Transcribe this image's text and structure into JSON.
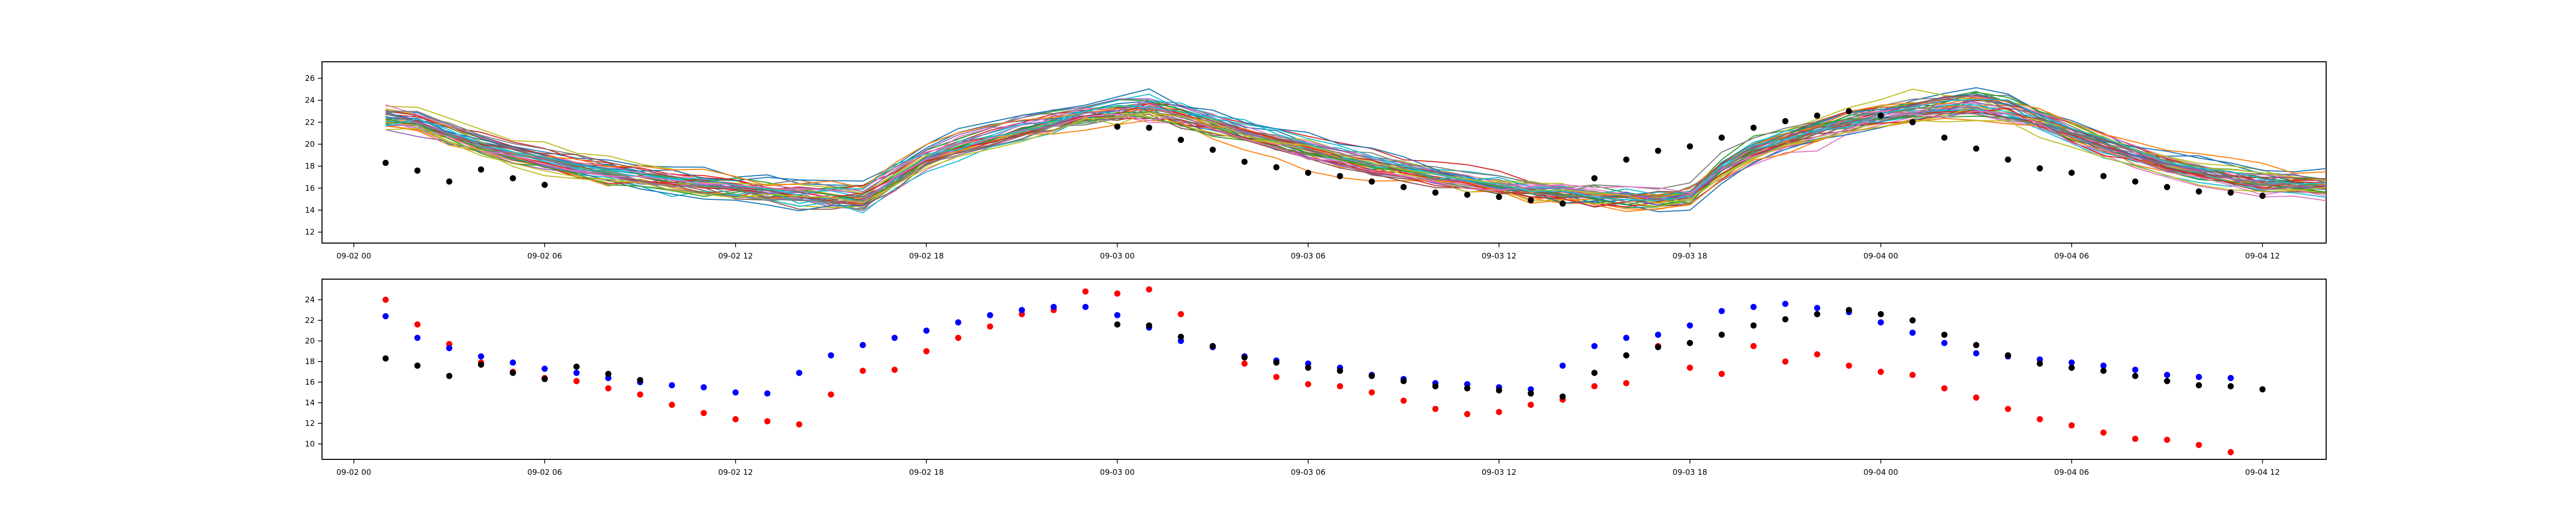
{
  "chart_data": [
    {
      "type": "line",
      "title": "",
      "xlabel": "",
      "ylabel": "",
      "xlim": [
        "2023-09-01 23:00",
        "2023-09-04 14:00"
      ],
      "ylim": [
        11,
        27.5
      ],
      "yticks": [
        12,
        14,
        16,
        18,
        20,
        22,
        24,
        26
      ],
      "xticks": [
        {
          "t": "2023-09-02 00:00",
          "label": "09-02 00"
        },
        {
          "t": "2023-09-02 06:00",
          "label": "09-02 06"
        },
        {
          "t": "2023-09-02 12:00",
          "label": "09-02 12"
        },
        {
          "t": "2023-09-02 18:00",
          "label": "09-02 18"
        },
        {
          "t": "2023-09-03 00:00",
          "label": "09-03 00"
        },
        {
          "t": "2023-09-03 06:00",
          "label": "09-03 06"
        },
        {
          "t": "2023-09-03 12:00",
          "label": "09-03 12"
        },
        {
          "t": "2023-09-03 18:00",
          "label": "09-03 18"
        },
        {
          "t": "2023-09-04 00:00",
          "label": "09-04 00"
        },
        {
          "t": "2023-09-04 06:00",
          "label": "09-04 06"
        },
        {
          "t": "2023-09-04 12:00",
          "label": "09-04 12"
        }
      ],
      "grid": false,
      "legend": "none",
      "ensemble": {
        "description_count": 40,
        "start": "2023-09-02 01:00",
        "step_hours": 1,
        "mean": [
          22.3,
          22.0,
          21.0,
          20.0,
          19.2,
          18.5,
          17.9,
          17.4,
          17.0,
          16.6,
          16.3,
          16.0,
          15.7,
          15.4,
          15.2,
          15.0,
          17.0,
          18.8,
          19.8,
          20.6,
          21.3,
          22.0,
          22.6,
          23.1,
          23.4,
          22.8,
          22.0,
          21.2,
          20.4,
          19.6,
          18.9,
          18.2,
          17.7,
          17.2,
          16.8,
          16.4,
          16.0,
          15.7,
          15.4,
          15.2,
          15.0,
          15.4,
          17.8,
          19.4,
          20.4,
          21.2,
          22.0,
          22.6,
          23.1,
          23.5,
          23.7,
          23.2,
          22.2,
          21.0,
          19.9,
          18.9,
          18.1,
          17.5,
          17.0,
          16.6,
          16.3,
          16.1,
          16.0,
          15.9,
          15.8,
          15.7
        ],
        "colors": [
          "#1f77b4",
          "#ff7f0e",
          "#2ca02c",
          "#d62728",
          "#9467bd",
          "#8c564b",
          "#e377c2",
          "#7f7f7f",
          "#bcbd22",
          "#17becf"
        ]
      },
      "series": [
        {
          "name": "",
          "color": "#000000",
          "marker": "o",
          "points": [
            [
              "2023-09-02 01:00",
              18.3
            ],
            [
              "2023-09-02 02:00",
              17.6
            ],
            [
              "2023-09-02 03:00",
              16.6
            ],
            [
              "2023-09-02 04:00",
              17.7
            ],
            [
              "2023-09-02 05:00",
              16.9
            ],
            [
              "2023-09-02 06:00",
              16.3
            ],
            [
              "2023-09-03 00:00",
              21.6
            ],
            [
              "2023-09-03 01:00",
              21.5
            ],
            [
              "2023-09-03 02:00",
              20.4
            ],
            [
              "2023-09-03 03:00",
              19.5
            ],
            [
              "2023-09-03 04:00",
              18.4
            ],
            [
              "2023-09-03 05:00",
              17.9
            ],
            [
              "2023-09-03 06:00",
              17.4
            ],
            [
              "2023-09-03 07:00",
              17.1
            ],
            [
              "2023-09-03 08:00",
              16.6
            ],
            [
              "2023-09-03 09:00",
              16.1
            ],
            [
              "2023-09-03 10:00",
              15.6
            ],
            [
              "2023-09-03 11:00",
              15.4
            ],
            [
              "2023-09-03 12:00",
              15.2
            ],
            [
              "2023-09-03 13:00",
              14.9
            ],
            [
              "2023-09-03 14:00",
              14.6
            ],
            [
              "2023-09-03 15:00",
              16.9
            ],
            [
              "2023-09-03 16:00",
              18.6
            ],
            [
              "2023-09-03 17:00",
              19.4
            ],
            [
              "2023-09-03 18:00",
              19.8
            ],
            [
              "2023-09-03 19:00",
              20.6
            ],
            [
              "2023-09-03 20:00",
              21.5
            ],
            [
              "2023-09-03 21:00",
              22.1
            ],
            [
              "2023-09-03 22:00",
              22.6
            ],
            [
              "2023-09-03 23:00",
              23.0
            ],
            [
              "2023-09-04 00:00",
              22.6
            ],
            [
              "2023-09-04 01:00",
              22.0
            ],
            [
              "2023-09-04 02:00",
              20.6
            ],
            [
              "2023-09-04 03:00",
              19.6
            ],
            [
              "2023-09-04 04:00",
              18.6
            ],
            [
              "2023-09-04 05:00",
              17.8
            ],
            [
              "2023-09-04 06:00",
              17.4
            ],
            [
              "2023-09-04 07:00",
              17.1
            ],
            [
              "2023-09-04 08:00",
              16.6
            ],
            [
              "2023-09-04 09:00",
              16.1
            ],
            [
              "2023-09-04 10:00",
              15.7
            ],
            [
              "2023-09-04 11:00",
              15.6
            ],
            [
              "2023-09-04 12:00",
              15.3
            ]
          ]
        }
      ]
    },
    {
      "type": "scatter",
      "title": "",
      "xlabel": "",
      "ylabel": "",
      "xlim": [
        "2023-09-01 23:00",
        "2023-09-04 14:00"
      ],
      "ylim": [
        8.5,
        26
      ],
      "yticks": [
        10,
        12,
        14,
        16,
        18,
        20,
        22,
        24
      ],
      "xticks": [
        {
          "t": "2023-09-02 00:00",
          "label": "09-02 00"
        },
        {
          "t": "2023-09-02 06:00",
          "label": "09-02 06"
        },
        {
          "t": "2023-09-02 12:00",
          "label": "09-02 12"
        },
        {
          "t": "2023-09-02 18:00",
          "label": "09-02 18"
        },
        {
          "t": "2023-09-03 00:00",
          "label": "09-03 00"
        },
        {
          "t": "2023-09-03 06:00",
          "label": "09-03 06"
        },
        {
          "t": "2023-09-03 12:00",
          "label": "09-03 12"
        },
        {
          "t": "2023-09-03 18:00",
          "label": "09-03 18"
        },
        {
          "t": "2023-09-04 00:00",
          "label": "09-04 00"
        },
        {
          "t": "2023-09-04 06:00",
          "label": "09-04 06"
        },
        {
          "t": "2023-09-04 12:00",
          "label": "09-04 12"
        }
      ],
      "grid": false,
      "legend": "none",
      "series": [
        {
          "name": "",
          "color": "#ff0000",
          "start": "2023-09-02 01:00",
          "step_hours": 1,
          "values": [
            24.0,
            21.6,
            19.7,
            17.9,
            17.0,
            16.4,
            16.1,
            15.4,
            14.8,
            13.8,
            13.0,
            12.4,
            12.2,
            11.9,
            14.8,
            17.1,
            17.2,
            19.0,
            20.3,
            21.4,
            22.6,
            23.0,
            24.8,
            24.6,
            25.0,
            22.6,
            19.5,
            17.8,
            16.5,
            15.8,
            15.6,
            15.0,
            14.2,
            13.4,
            12.9,
            13.1,
            13.8,
            14.3,
            15.6,
            15.9,
            19.5,
            17.4,
            16.8,
            19.5,
            18.0,
            18.7,
            17.6,
            17.0,
            16.7,
            15.4,
            14.5,
            13.4,
            12.4,
            11.8,
            11.1,
            10.5,
            10.4,
            9.9,
            9.2
          ]
        },
        {
          "name": "",
          "color": "#0000ff",
          "start": "2023-09-02 01:00",
          "step_hours": 1,
          "values": [
            22.4,
            20.3,
            19.3,
            18.5,
            17.9,
            17.3,
            16.9,
            16.4,
            16.0,
            15.7,
            15.5,
            15.0,
            14.9,
            16.9,
            18.6,
            19.6,
            20.3,
            21.0,
            21.8,
            22.5,
            23.0,
            23.3,
            23.3,
            22.5,
            21.3,
            20.0,
            19.4,
            18.5,
            18.1,
            17.8,
            17.4,
            16.7,
            16.3,
            15.9,
            15.8,
            15.5,
            15.3,
            17.6,
            19.5,
            20.3,
            20.6,
            21.5,
            22.9,
            23.3,
            23.6,
            23.2,
            22.8,
            21.8,
            20.8,
            19.8,
            18.8,
            18.5,
            18.2,
            17.9,
            17.6,
            17.2,
            16.7,
            16.5,
            16.4
          ]
        },
        {
          "name": "",
          "color": "#000000",
          "start": "2023-09-02 01:00",
          "step_hours": 1,
          "points": [
            [
              "2023-09-02 01:00",
              18.3
            ],
            [
              "2023-09-02 02:00",
              17.6
            ],
            [
              "2023-09-02 03:00",
              16.6
            ],
            [
              "2023-09-02 04:00",
              17.7
            ],
            [
              "2023-09-02 05:00",
              16.9
            ],
            [
              "2023-09-02 06:00",
              16.3
            ],
            [
              "2023-09-02 07:00",
              17.5
            ],
            [
              "2023-09-02 08:00",
              16.8
            ],
            [
              "2023-09-02 09:00",
              16.2
            ],
            [
              "2023-09-03 00:00",
              21.6
            ],
            [
              "2023-09-03 01:00",
              21.5
            ],
            [
              "2023-09-03 02:00",
              20.4
            ],
            [
              "2023-09-03 03:00",
              19.5
            ],
            [
              "2023-09-03 04:00",
              18.4
            ],
            [
              "2023-09-03 05:00",
              17.9
            ],
            [
              "2023-09-03 06:00",
              17.4
            ],
            [
              "2023-09-03 07:00",
              17.1
            ],
            [
              "2023-09-03 08:00",
              16.6
            ],
            [
              "2023-09-03 09:00",
              16.1
            ],
            [
              "2023-09-03 10:00",
              15.6
            ],
            [
              "2023-09-03 11:00",
              15.4
            ],
            [
              "2023-09-03 12:00",
              15.2
            ],
            [
              "2023-09-03 13:00",
              14.9
            ],
            [
              "2023-09-03 14:00",
              14.6
            ],
            [
              "2023-09-03 15:00",
              16.9
            ],
            [
              "2023-09-03 16:00",
              18.6
            ],
            [
              "2023-09-03 17:00",
              19.4
            ],
            [
              "2023-09-03 18:00",
              19.8
            ],
            [
              "2023-09-03 19:00",
              20.6
            ],
            [
              "2023-09-03 20:00",
              21.5
            ],
            [
              "2023-09-03 21:00",
              22.1
            ],
            [
              "2023-09-03 22:00",
              22.6
            ],
            [
              "2023-09-03 23:00",
              23.0
            ],
            [
              "2023-09-04 00:00",
              22.6
            ],
            [
              "2023-09-04 01:00",
              22.0
            ],
            [
              "2023-09-04 02:00",
              20.6
            ],
            [
              "2023-09-04 03:00",
              19.6
            ],
            [
              "2023-09-04 04:00",
              18.6
            ],
            [
              "2023-09-04 05:00",
              17.8
            ],
            [
              "2023-09-04 06:00",
              17.4
            ],
            [
              "2023-09-04 07:00",
              17.1
            ],
            [
              "2023-09-04 08:00",
              16.6
            ],
            [
              "2023-09-04 09:00",
              16.1
            ],
            [
              "2023-09-04 10:00",
              15.7
            ],
            [
              "2023-09-04 11:00",
              15.6
            ],
            [
              "2023-09-04 12:00",
              15.3
            ]
          ]
        }
      ]
    }
  ]
}
